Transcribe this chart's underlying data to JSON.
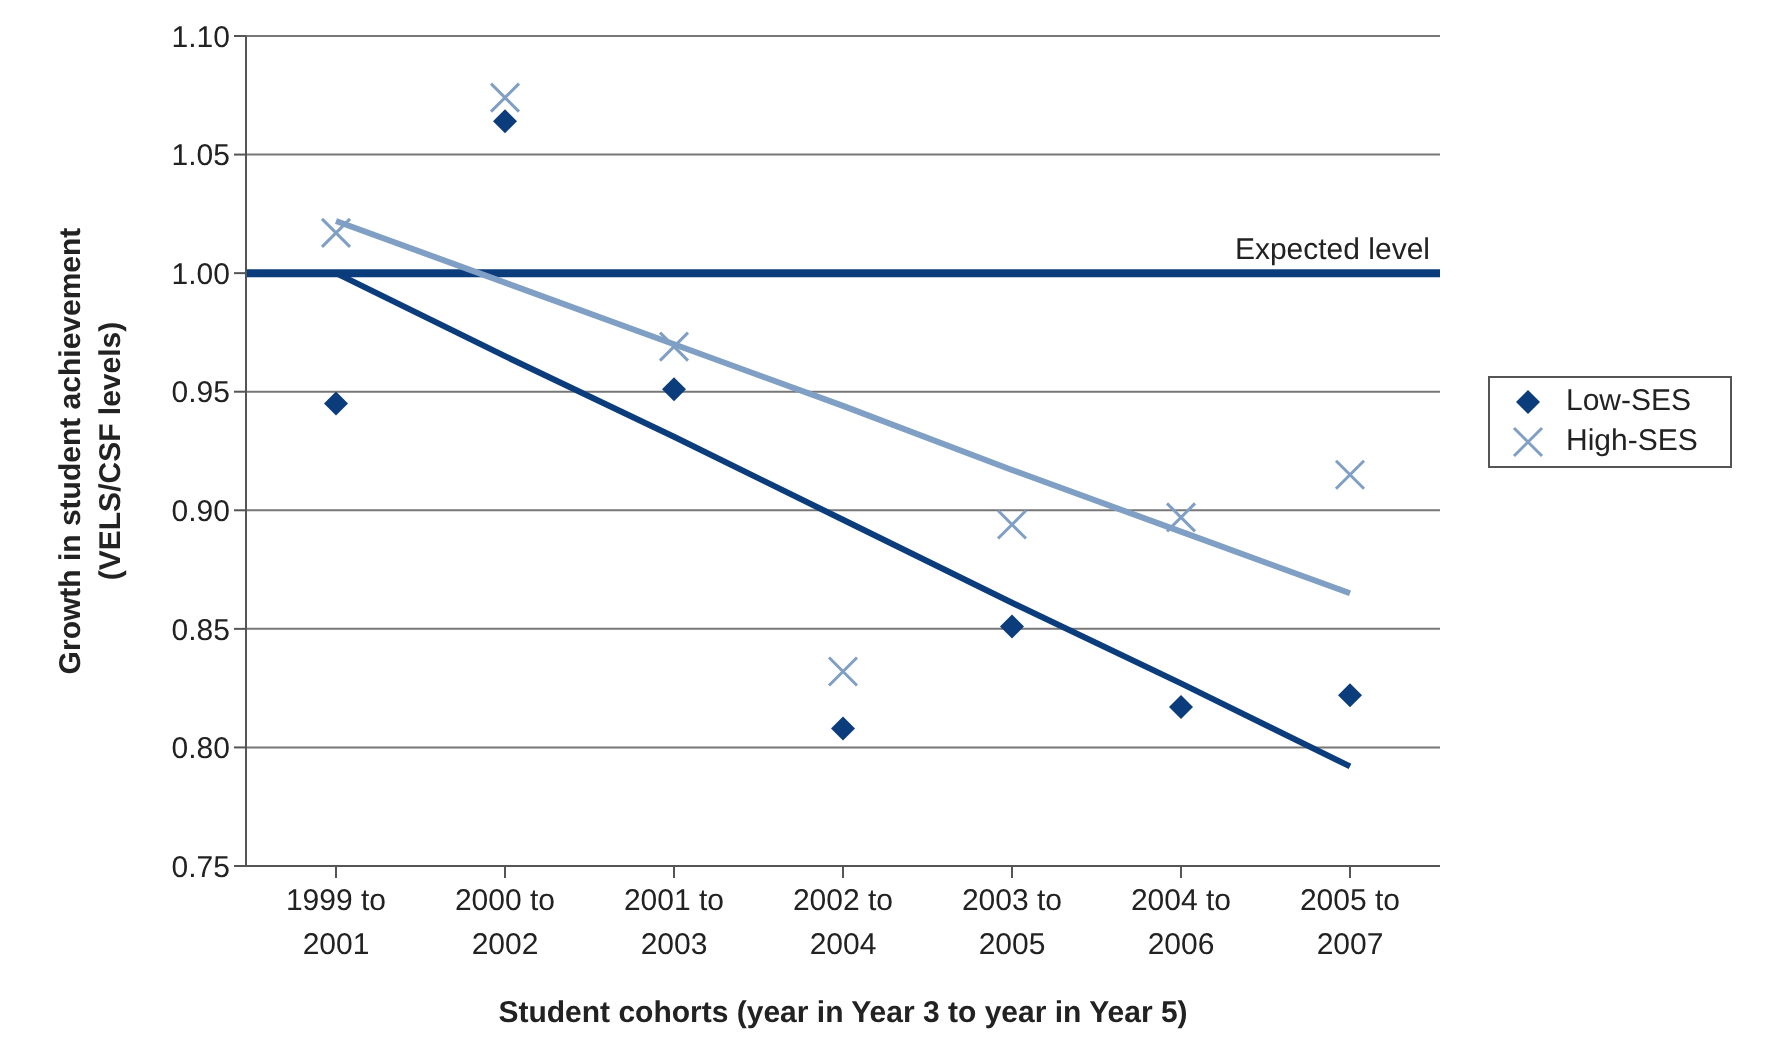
{
  "chart_data": {
    "type": "scatter",
    "xlabel": "Student cohorts (year in Year 3 to year in Year 5)",
    "ylabel": "Growth in student achievement (VELS/CSF levels)",
    "categories": [
      "1999 to 2001",
      "2000 to 2002",
      "2001 to 2003",
      "2002 to 2004",
      "2003 to 2005",
      "2004 to 2006",
      "2005 to 2007"
    ],
    "series": [
      {
        "name": "Low-SES",
        "marker": "diamond",
        "color": "#0b3c7c",
        "values": [
          0.945,
          1.064,
          0.951,
          0.808,
          0.851,
          0.817,
          0.822
        ]
      },
      {
        "name": "High-SES",
        "marker": "cross",
        "color": "#7f9fc4",
        "values": [
          1.017,
          1.074,
          0.969,
          0.832,
          0.894,
          0.897,
          0.915
        ]
      },
      {
        "type": "line",
        "marker": "none",
        "color": "#0b3c7c",
        "values": [
          1.0,
          0.965,
          0.931,
          0.896,
          0.861,
          0.827,
          0.792
        ]
      },
      {
        "type": "line",
        "marker": "none",
        "color": "#7f9fc4",
        "values": [
          1.022,
          0.996,
          0.97,
          0.944,
          0.917,
          0.891,
          0.865
        ]
      }
    ],
    "ylim": [
      0.75,
      1.1
    ],
    "yticks": [
      {
        "value": 0.75,
        "label": "0.75"
      },
      {
        "value": 0.8,
        "label": "0.80"
      },
      {
        "value": 0.85,
        "label": "0.85"
      },
      {
        "value": 0.9,
        "label": "0.90"
      },
      {
        "value": 0.95,
        "label": "0.95"
      },
      {
        "value": 1.0,
        "label": "1.00"
      },
      {
        "value": 1.05,
        "label": "1.05"
      },
      {
        "value": 1.1,
        "label": "1.10"
      }
    ],
    "grid": "y",
    "legend": "right",
    "ref_lines": [
      {
        "axis": "y",
        "value": 1.0,
        "label": "Expected level",
        "color": "#0b3c7c"
      }
    ]
  }
}
